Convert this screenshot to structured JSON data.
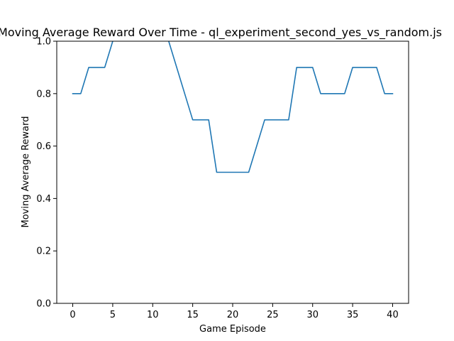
{
  "chart_data": {
    "type": "line",
    "title": "Moving Average Reward Over Time - ql_experiment_second_yes_vs_random.js",
    "xlabel": "Game Episode",
    "ylabel": "Moving Average Reward",
    "xlim": [
      -2,
      42
    ],
    "ylim": [
      0,
      1.0
    ],
    "x_ticks": [
      0,
      5,
      10,
      15,
      20,
      25,
      30,
      35,
      40
    ],
    "y_ticks": [
      0.0,
      0.2,
      0.4,
      0.6,
      0.8,
      1.0
    ],
    "x_tick_labels": [
      "0",
      "5",
      "10",
      "15",
      "20",
      "25",
      "30",
      "35",
      "40"
    ],
    "y_tick_labels": [
      "0.0",
      "0.2",
      "0.4",
      "0.6",
      "0.8",
      "1.0"
    ],
    "grid": false,
    "series": [
      {
        "color": "#1f77b4",
        "x": [
          0,
          1,
          2,
          3,
          4,
          5,
          6,
          7,
          8,
          9,
          10,
          11,
          12,
          13,
          14,
          15,
          16,
          17,
          18,
          19,
          20,
          21,
          22,
          23,
          24,
          25,
          26,
          27,
          28,
          29,
          30,
          31,
          32,
          33,
          34,
          35,
          36,
          37,
          38,
          39,
          40
        ],
        "values": [
          0.8,
          0.8,
          0.9,
          0.9,
          0.9,
          1.0,
          1.1,
          1.1,
          1.1,
          1.1,
          1.1,
          1.1,
          1.0,
          0.9,
          0.8,
          0.7,
          0.7,
          0.7,
          0.5,
          0.5,
          0.5,
          0.5,
          0.5,
          0.6,
          0.7,
          0.7,
          0.7,
          0.7,
          0.9,
          0.9,
          0.9,
          0.8,
          0.8,
          0.8,
          0.8,
          0.9,
          0.9,
          0.9,
          0.9,
          0.8,
          0.8
        ]
      }
    ]
  }
}
